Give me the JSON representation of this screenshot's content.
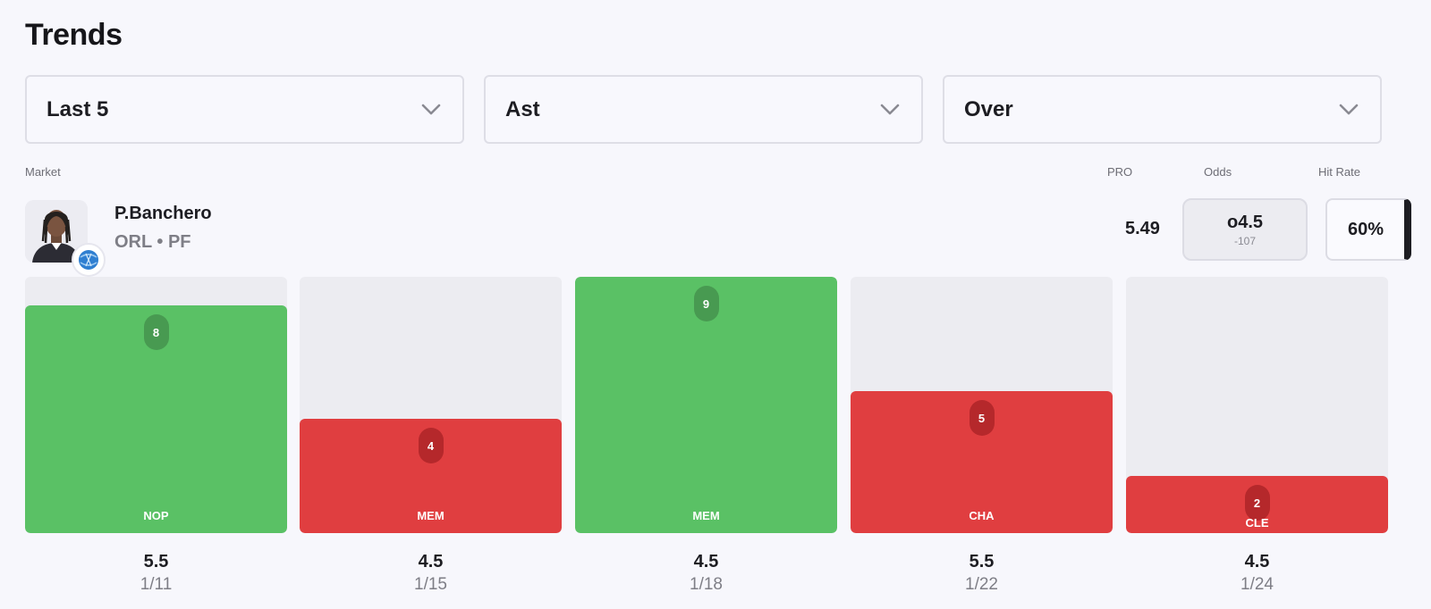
{
  "section_title": "Trends",
  "filters": [
    {
      "value": "Last 5",
      "icon": "chevron-down-icon"
    },
    {
      "value": "Ast",
      "icon": "chevron-down-icon"
    },
    {
      "value": "Over",
      "icon": "chevron-down-icon"
    }
  ],
  "columns": {
    "market": "Market",
    "pro": "PRO",
    "odds": "Odds",
    "hit_rate": "Hit Rate"
  },
  "player": {
    "name": "P.Banchero",
    "meta": "ORL • PF",
    "pro": "5.49",
    "odds_line": "o4.5",
    "odds_price": "-107",
    "hit_rate": "60%"
  },
  "colors": {
    "hit": "#5ac165",
    "miss": "#e03e40",
    "track": "#ececf1"
  },
  "chart_data": {
    "type": "bar",
    "categories": [
      "1/11",
      "1/15",
      "1/18",
      "1/22",
      "1/24"
    ],
    "opponents": [
      "NOP",
      "MEM",
      "MEM",
      "CHA",
      "CLE"
    ],
    "values": [
      8,
      4,
      9,
      5,
      2
    ],
    "lines": [
      "5.5",
      "4.5",
      "4.5",
      "5.5",
      "4.5"
    ],
    "results": [
      "hit",
      "miss",
      "hit",
      "miss",
      "miss"
    ],
    "ylim": [
      0,
      9
    ]
  }
}
